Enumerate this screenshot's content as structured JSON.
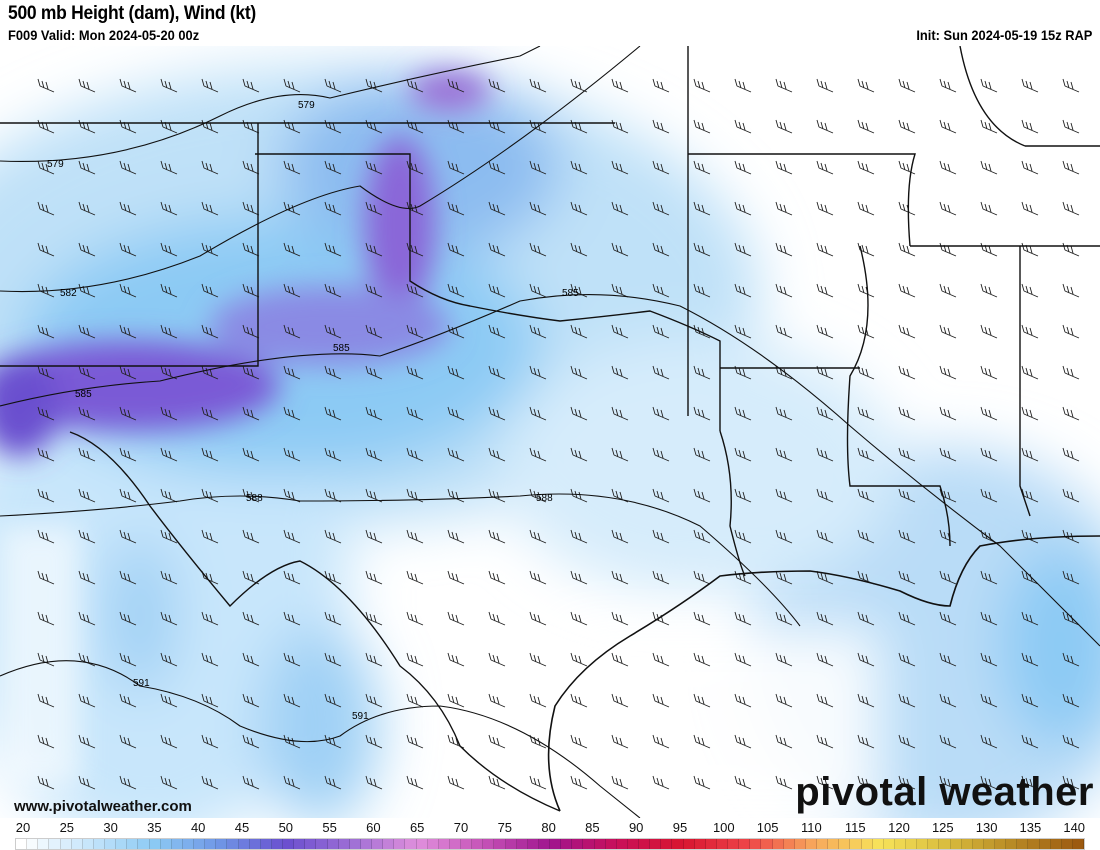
{
  "header": {
    "title": "500 mb Height (dam), Wind (kt)",
    "valid": "F009 Valid: Mon 2024-05-20 00z",
    "init": "Init: Sun 2024-05-19 15z RAP"
  },
  "map": {
    "contour_labels": [
      "579",
      "579",
      "582",
      "585",
      "585",
      "585",
      "588",
      "588",
      "591",
      "591"
    ]
  },
  "footer": {
    "url": "www.pivotalweather.com",
    "logo": "pivotal weather"
  },
  "colorbar": {
    "ticks": [
      "20",
      "25",
      "30",
      "35",
      "40",
      "45",
      "50",
      "55",
      "60",
      "65",
      "70",
      "75",
      "80",
      "85",
      "90",
      "95",
      "100",
      "105",
      "110",
      "115",
      "120",
      "125",
      "130",
      "135",
      "140"
    ],
    "stops": [
      "#ffffff",
      "#c8e6fb",
      "#8ccaf4",
      "#6f96e6",
      "#6a4fcf",
      "#9e6fd6",
      "#e08fdc",
      "#c653b8",
      "#a0168f",
      "#c80f5a",
      "#d81530",
      "#ee4448",
      "#f7a85c",
      "#f7e35a",
      "#d9bd3e",
      "#b88a25",
      "#9c5a10"
    ]
  }
}
